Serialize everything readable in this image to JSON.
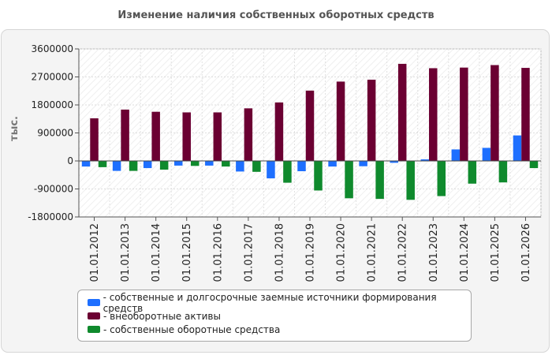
{
  "chart_data": {
    "type": "bar",
    "title": "Изменение наличия собственных оборотных средств",
    "ylabel": "тыс.",
    "xlabel": "",
    "ylim": [
      -1800000,
      3600000
    ],
    "yticks": [
      "3600000",
      "2700000",
      "1800000",
      "900000",
      "0",
      "-900000",
      "-1800000"
    ],
    "ytick_values": [
      3600000,
      2700000,
      1800000,
      900000,
      0,
      -900000,
      -1800000
    ],
    "categories": [
      "01.01.2012",
      "01.01.2013",
      "01.01.2014",
      "01.01.2015",
      "01.01.2016",
      "01.01.2017",
      "01.01.2018",
      "01.01.2019",
      "01.01.2020",
      "01.01.2021",
      "01.01.2022",
      "01.01.2023",
      "01.01.2024",
      "01.01.2025",
      "01.01.2026"
    ],
    "series": [
      {
        "name": "- собственные и долгосрочные заемные источники формирования средств",
        "color": "#1e6fff",
        "values": [
          -180000,
          -320000,
          -230000,
          -150000,
          -150000,
          -340000,
          -560000,
          -330000,
          -180000,
          -170000,
          -60000,
          50000,
          370000,
          420000,
          820000
        ]
      },
      {
        "name": "- внеоборотные активы",
        "color": "#6b0032",
        "values": [
          1370000,
          1650000,
          1580000,
          1560000,
          1560000,
          1690000,
          1880000,
          2260000,
          2550000,
          2610000,
          3120000,
          2980000,
          3000000,
          3080000,
          2990000
        ]
      },
      {
        "name": "- собственные оборотные средства",
        "color": "#0f8a2d",
        "values": [
          -200000,
          -320000,
          -280000,
          -160000,
          -180000,
          -350000,
          -700000,
          -950000,
          -1200000,
          -1220000,
          -1250000,
          -1130000,
          -730000,
          -690000,
          -230000
        ]
      }
    ],
    "grid": true,
    "legend_position": "bottom"
  }
}
